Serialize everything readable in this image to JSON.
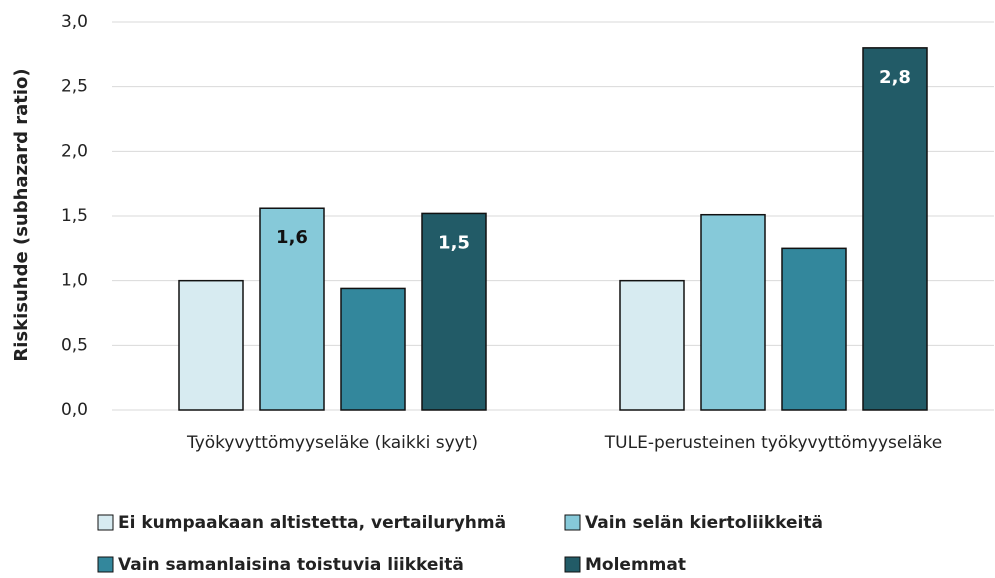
{
  "chart_data": {
    "type": "bar",
    "y_label": "Riskisuhde (subhazard ratio)",
    "categories": [
      "Työkyvyttömyyseläke (kaikki syyt)",
      "TULE-perusteinen työkyvyttömyyseläke"
    ],
    "series": [
      {
        "name": "Ei kumpaakaan altistetta, vertailuryhmä",
        "color": "#d7ebf1",
        "values": [
          1.0,
          1.0
        ]
      },
      {
        "name": "Vain selän kiertoliikkeitä",
        "color": "#86c9d9",
        "values": [
          1.56,
          1.51
        ],
        "value_labels": [
          "1,6",
          null
        ]
      },
      {
        "name": "Vain samanlaisina toistuvia liikkeitä",
        "color": "#33879c",
        "values": [
          0.94,
          1.25
        ]
      },
      {
        "name": "Molemmat",
        "color": "#225b67",
        "values": [
          1.52,
          2.8
        ],
        "value_labels": [
          "1,5",
          "2,8"
        ]
      }
    ],
    "ylim": [
      0,
      3
    ],
    "yticks": [
      {
        "value": 0,
        "label": "0,0"
      },
      {
        "value": 0.5,
        "label": "0,5"
      },
      {
        "value": 1,
        "label": "1,0"
      },
      {
        "value": 1.5,
        "label": "1,5"
      },
      {
        "value": 2,
        "label": "2,0"
      },
      {
        "value": 2.5,
        "label": "2,5"
      },
      {
        "value": 3,
        "label": "3,0"
      }
    ],
    "grid": true
  }
}
